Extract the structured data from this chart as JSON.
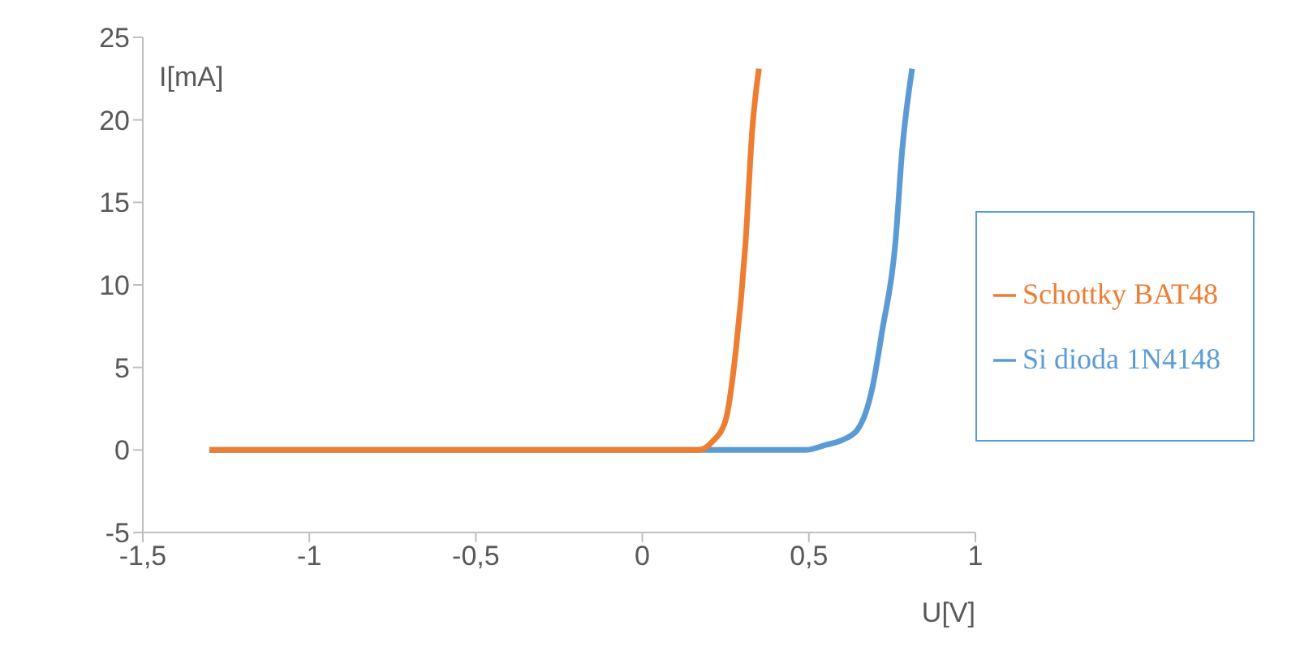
{
  "chart_data": {
    "type": "line",
    "xlabel": "U[V]",
    "ylabel": "I[mA]",
    "xlim": [
      -1.5,
      1
    ],
    "xticks": [
      {
        "value": -1.5,
        "label": "-1,5"
      },
      -1,
      {
        "value": -0.5,
        "label": "-0,5"
      },
      0,
      {
        "value": 0.5,
        "label": "0,5"
      },
      1
    ],
    "ylim": [
      -5,
      25
    ],
    "yticks": [
      -5,
      0,
      5,
      10,
      15,
      20,
      25
    ],
    "grid": false,
    "legend": "right",
    "marker": "none",
    "line_style": "solid",
    "series": [
      {
        "name": "Si dioda 1N4148",
        "color": "#5b9bd5",
        "x": [
          -1.3,
          0,
          0.3,
          0.49,
          0.55,
          0.6,
          0.645,
          0.69,
          0.72,
          0.76,
          0.78,
          0.81
        ],
        "values": [
          0,
          0,
          0,
          0,
          0.3,
          0.6,
          1.2,
          3.7,
          7.2,
          12.6,
          18.1,
          23.1
        ]
      },
      {
        "name": "Schottky BAT48",
        "color": "#ed7d31",
        "x": [
          -1.3,
          0,
          0.17,
          0.21,
          0.25,
          0.28,
          0.31,
          0.33,
          0.35
        ],
        "values": [
          0,
          0,
          0,
          0.5,
          1.8,
          5.9,
          12.6,
          19.4,
          23.1
        ]
      }
    ]
  }
}
